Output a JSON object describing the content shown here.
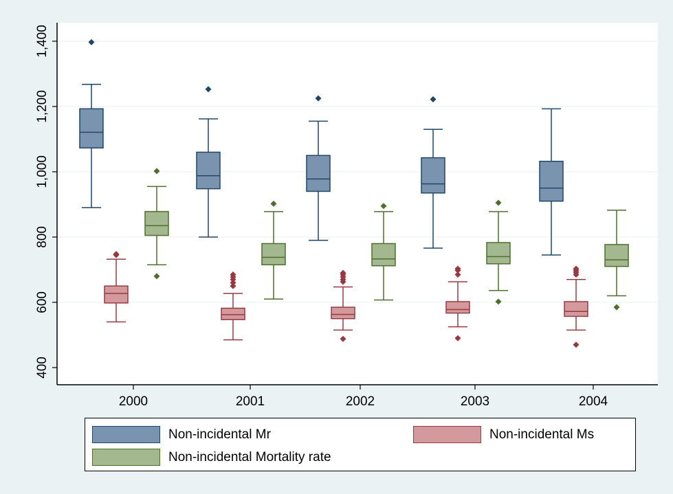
{
  "chart_data": {
    "type": "box",
    "categories": [
      "2000",
      "2001",
      "2002",
      "2003",
      "2004"
    ],
    "ylim": [
      370,
      1450
    ],
    "yticks": [
      400,
      600,
      800,
      1000,
      1200,
      1400
    ],
    "ytick_labels": [
      "400",
      "600",
      "800",
      "1,000",
      "1,200",
      "1,400"
    ],
    "grid": true,
    "legend_position": "bottom",
    "series": [
      {
        "name": "Non-incidental Mr",
        "fill": "#7a94b0",
        "stroke": "#1f4668",
        "boxes": [
          {
            "low": 890,
            "q1": 1073,
            "median": 1121,
            "q3": 1193,
            "high": 1268,
            "outliers": [
              1397
            ]
          },
          {
            "low": 800,
            "q1": 948,
            "median": 988,
            "q3": 1060,
            "high": 1162,
            "outliers": [
              1253
            ]
          },
          {
            "low": 790,
            "q1": 940,
            "median": 978,
            "q3": 1050,
            "high": 1155,
            "outliers": [
              1225
            ]
          },
          {
            "low": 766,
            "q1": 935,
            "median": 963,
            "q3": 1043,
            "high": 1130,
            "outliers": [
              1222
            ]
          },
          {
            "low": 745,
            "q1": 910,
            "median": 950,
            "q3": 1032,
            "high": 1193,
            "outliers": []
          }
        ]
      },
      {
        "name": "Non-incidental Ms",
        "fill": "#d4999c",
        "stroke": "#963a40",
        "boxes": [
          {
            "low": 540,
            "q1": 598,
            "median": 627,
            "q3": 650,
            "high": 732,
            "outliers": [
              745,
              748
            ]
          },
          {
            "low": 485,
            "q1": 547,
            "median": 562,
            "q3": 582,
            "high": 627,
            "outliers": [
              650,
              660,
              670,
              678,
              685
            ]
          },
          {
            "low": 515,
            "q1": 550,
            "median": 563,
            "q3": 585,
            "high": 647,
            "outliers": [
              488,
              663,
              670,
              678,
              685,
              690
            ]
          },
          {
            "low": 525,
            "q1": 567,
            "median": 578,
            "q3": 602,
            "high": 663,
            "outliers": [
              490,
              685,
              698,
              703
            ]
          },
          {
            "low": 515,
            "q1": 557,
            "median": 572,
            "q3": 602,
            "high": 670,
            "outliers": [
              470,
              685,
              692,
              698,
              703
            ]
          }
        ]
      },
      {
        "name": "Non-incidental Mortality rate",
        "fill": "#a3b88f",
        "stroke": "#4d6e2c",
        "boxes": [
          {
            "low": 715,
            "q1": 805,
            "median": 835,
            "q3": 878,
            "high": 955,
            "outliers": [
              680,
              1002
            ]
          },
          {
            "low": 610,
            "q1": 715,
            "median": 738,
            "q3": 780,
            "high": 878,
            "outliers": [
              902
            ]
          },
          {
            "low": 607,
            "q1": 712,
            "median": 733,
            "q3": 780,
            "high": 878,
            "outliers": [
              895
            ]
          },
          {
            "low": 636,
            "q1": 718,
            "median": 740,
            "q3": 783,
            "high": 878,
            "outliers": [
              602,
              905
            ]
          },
          {
            "low": 620,
            "q1": 710,
            "median": 730,
            "q3": 777,
            "high": 882,
            "outliers": [
              585
            ]
          }
        ]
      }
    ]
  }
}
